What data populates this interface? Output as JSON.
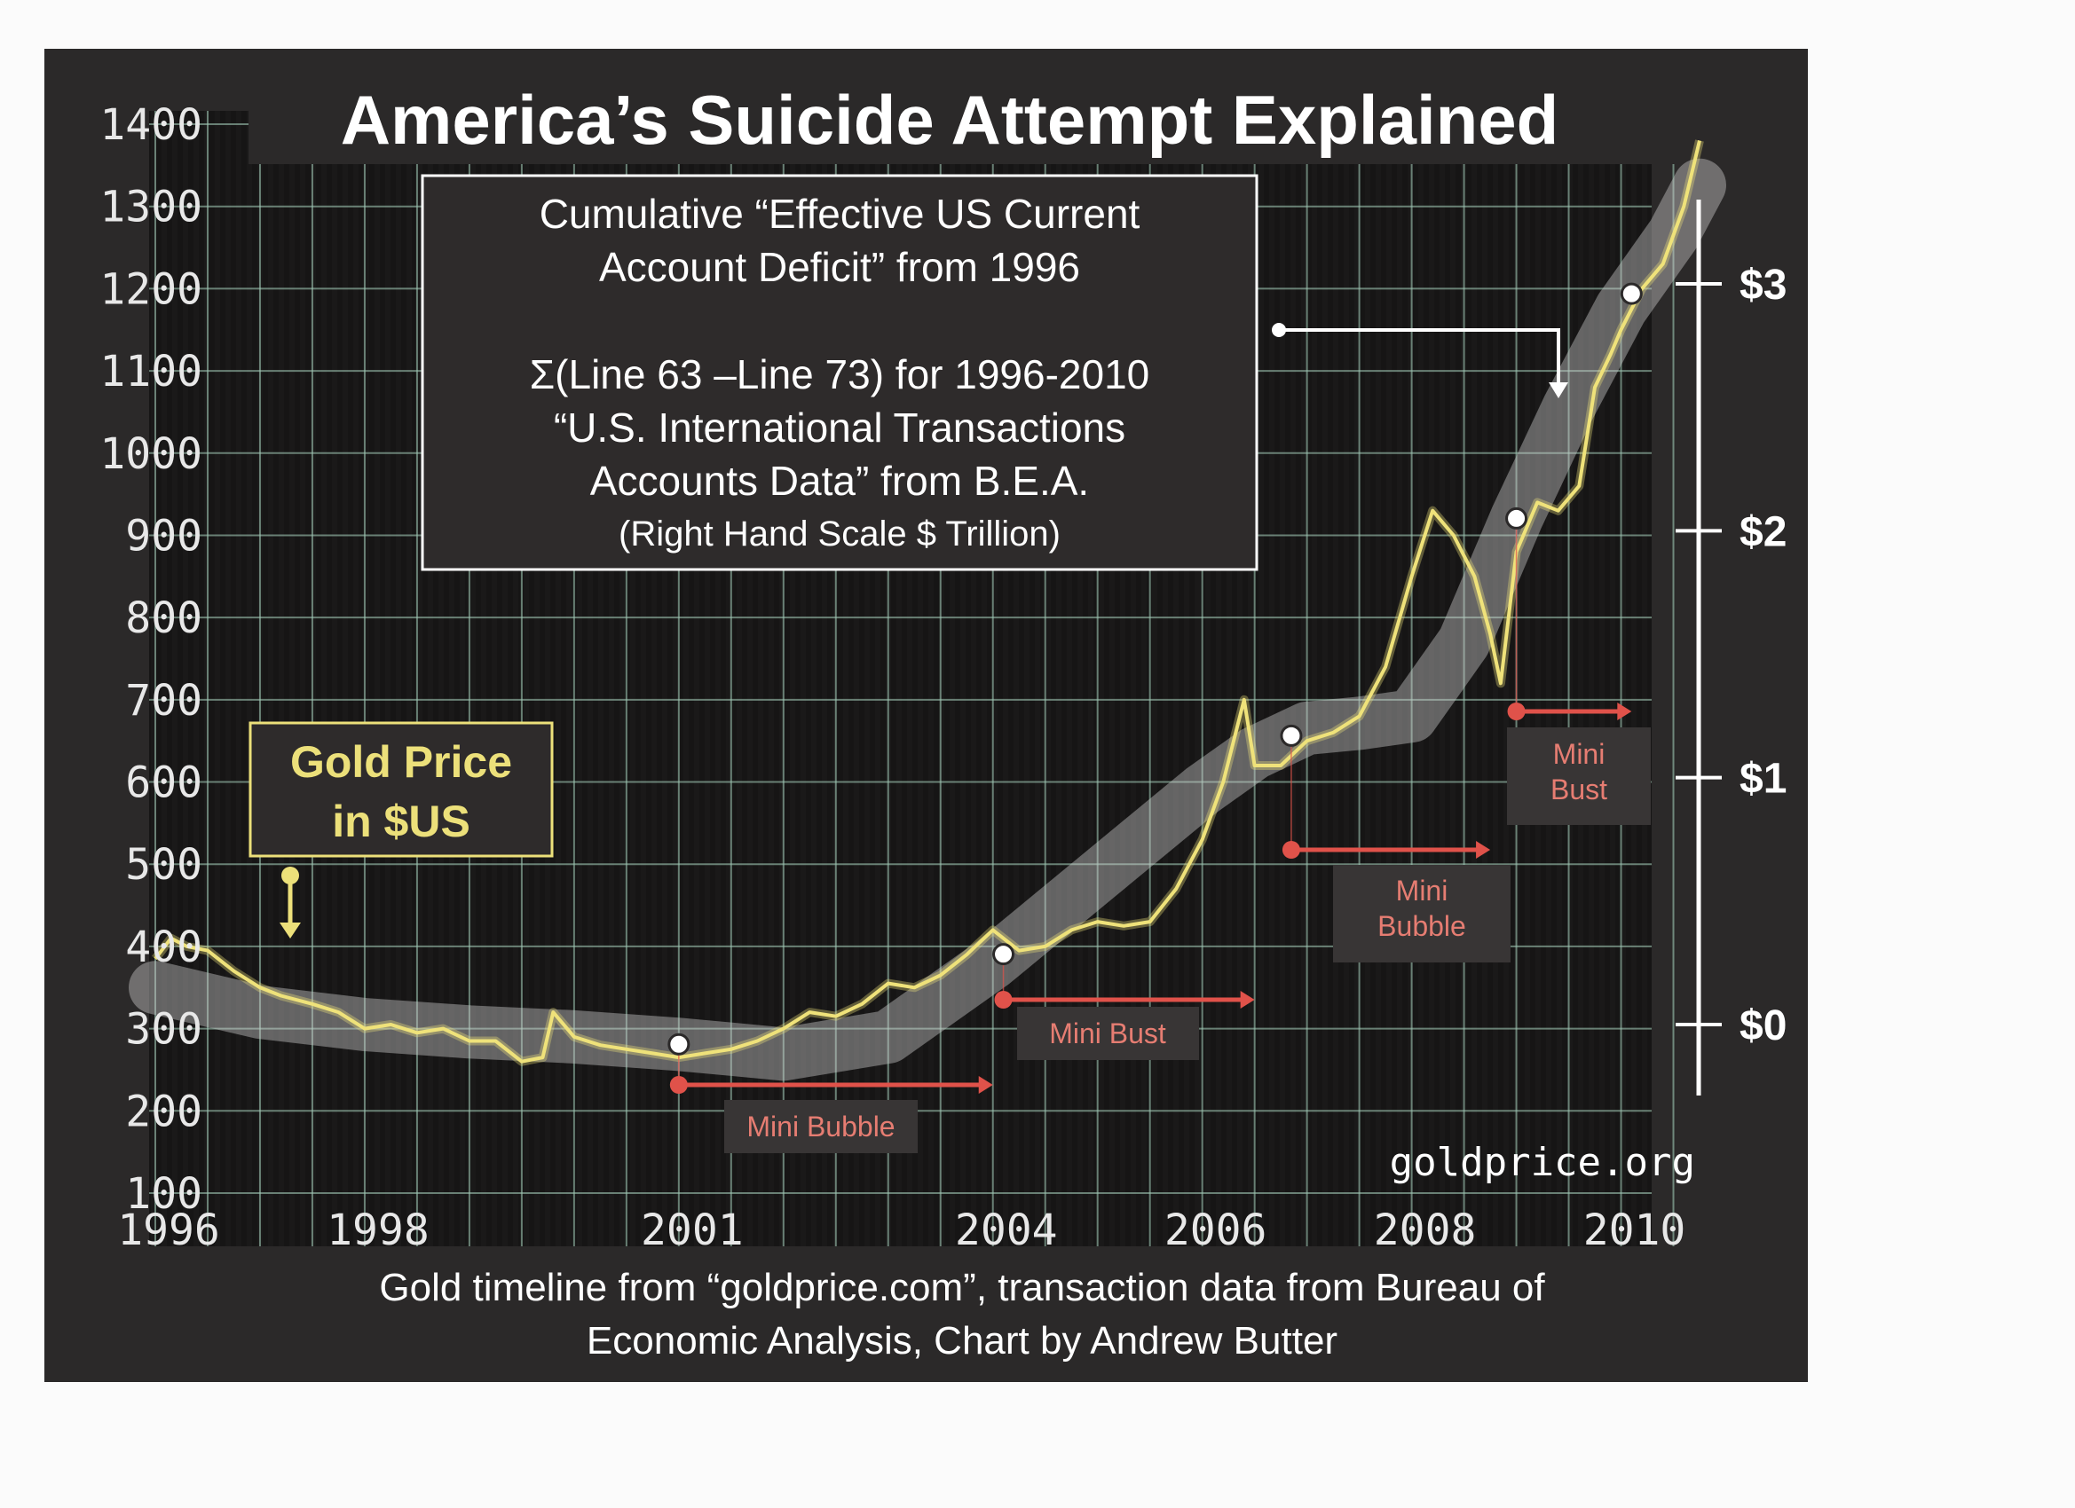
{
  "chart_data": {
    "type": "line",
    "title": "America’s Suicide Attempt Explained",
    "info_box": {
      "line1": "Cumulative “Effective US Current",
      "line2": "Account Deficit” from 1996",
      "line3": "Σ(Line 63 –Line 73) for 1996-2010",
      "line4": "“U.S. International Transactions",
      "line5": "Accounts Data” from B.E.A.",
      "line6": "(Right Hand Scale $ Trillion)"
    },
    "gold_label": {
      "line1": "Gold Price",
      "line2": "in $US"
    },
    "source_credit": {
      "line1": "Gold timeline from “goldprice.com”, transaction data from Bureau of",
      "line2": "Economic Analysis, Chart by Andrew Butter"
    },
    "watermark": "goldprice.org",
    "y_left": {
      "ticks": [
        "1400",
        "1300",
        "1200",
        "1100",
        "1000",
        "900",
        "800",
        "700",
        "600",
        "500",
        "400",
        "300",
        "200",
        "100"
      ],
      "range": [
        100,
        1400
      ]
    },
    "y_right": {
      "ticks": [
        "$3",
        "$2",
        "$1",
        "$0"
      ],
      "unit": "$ Trillion"
    },
    "x_ticks": [
      "1996",
      "1998",
      "2001",
      "2004",
      "2006",
      "2008",
      "2010"
    ],
    "x_range": [
      1996,
      2010.75
    ],
    "grid": true,
    "series": [
      {
        "name": "Gold Price in $US",
        "color": "#efe27a",
        "x": [
          1996.0,
          1996.15,
          1996.3,
          1996.5,
          1996.75,
          1997.0,
          1997.2,
          1997.5,
          1997.75,
          1998.0,
          1998.25,
          1998.5,
          1998.75,
          1999.0,
          1999.25,
          1999.5,
          1999.7,
          1999.8,
          2000.0,
          2000.25,
          2000.5,
          2000.75,
          2001.0,
          2001.25,
          2001.5,
          2001.75,
          2002.0,
          2002.25,
          2002.5,
          2002.75,
          2003.0,
          2003.25,
          2003.5,
          2003.75,
          2004.0,
          2004.25,
          2004.5,
          2004.75,
          2005.0,
          2005.25,
          2005.5,
          2005.75,
          2006.0,
          2006.2,
          2006.4,
          2006.5,
          2006.75,
          2007.0,
          2007.25,
          2007.5,
          2007.75,
          2008.0,
          2008.2,
          2008.4,
          2008.6,
          2008.75,
          2008.85,
          2009.0,
          2009.2,
          2009.4,
          2009.6,
          2009.75,
          2009.9,
          2010.0,
          2010.2,
          2010.4,
          2010.6,
          2010.75
        ],
        "y": [
          385,
          410,
          400,
          395,
          370,
          350,
          340,
          330,
          320,
          300,
          305,
          295,
          300,
          285,
          285,
          260,
          265,
          320,
          290,
          280,
          275,
          270,
          265,
          270,
          275,
          285,
          300,
          320,
          315,
          330,
          355,
          350,
          365,
          390,
          420,
          395,
          400,
          420,
          430,
          425,
          430,
          470,
          530,
          600,
          700,
          620,
          620,
          650,
          660,
          680,
          740,
          850,
          930,
          900,
          850,
          780,
          720,
          880,
          940,
          930,
          960,
          1080,
          1120,
          1150,
          1200,
          1230,
          1300,
          1380
        ]
      },
      {
        "name": "Cumulative Effective US Current Account Deficit",
        "color": "#cfcfcf",
        "axis": "right",
        "x": [
          1996.0,
          1997.0,
          1998.0,
          1999.0,
          2000.0,
          2001.0,
          2001.5,
          2002.0,
          2003.0,
          2004.0,
          2005.0,
          2006.0,
          2006.5,
          2007.0,
          2007.5,
          2008.0,
          2008.5,
          2009.0,
          2009.5,
          2010.0,
          2010.5,
          2010.75
        ],
        "y": [
          0.15,
          0.05,
          0.0,
          -0.03,
          -0.05,
          -0.08,
          -0.1,
          -0.12,
          -0.05,
          0.25,
          0.6,
          0.95,
          1.1,
          1.2,
          1.22,
          1.25,
          1.55,
          2.05,
          2.5,
          2.9,
          3.2,
          3.4
        ]
      }
    ],
    "annotations": [
      {
        "label": "Mini Bubble",
        "start": 2001.0,
        "end": 2004.0
      },
      {
        "label": "Mini Bust",
        "start": 2004.1,
        "end": 2006.5
      },
      {
        "label": "Mini Bubble",
        "start": 2006.85,
        "end": 2008.75
      },
      {
        "label": "Mini Bust",
        "start": 2009.0,
        "end": 2010.1
      }
    ],
    "phase_labels": {
      "p1": "Mini Bubble",
      "p2": "Mini Bust",
      "p3_line1": "Mini",
      "p3_line2": "Bubble",
      "p4_line1": "Mini",
      "p4_line2": "Bust"
    }
  }
}
